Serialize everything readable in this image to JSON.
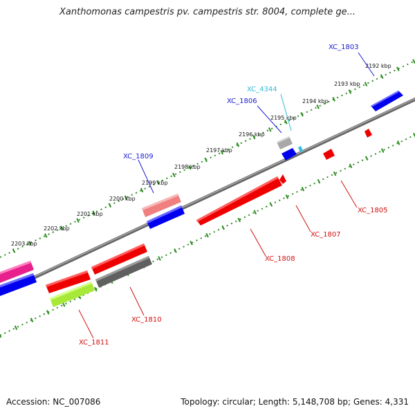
{
  "title": "Xanthomonas campestris pv. campestris str. 8004, complete ge...",
  "footer": {
    "accession": "Accession: NC_007086",
    "summary": "Topology: circular; Length: 5,148,708 bp; Genes: 4,331"
  },
  "colors": {
    "backbone": "#808080",
    "tick": "#2e8b22",
    "forward_label": "#1a1ad0",
    "reverse_label": "#d01010",
    "highlight_label": "#30b8d8"
  },
  "ticks": [
    {
      "label": "2192 kbp"
    },
    {
      "label": "2193 kbp"
    },
    {
      "label": "2194 kbp"
    },
    {
      "label": "2195 kbp"
    },
    {
      "label": "2196 kbp"
    },
    {
      "label": "2197 kbp"
    },
    {
      "label": "2198 kbp"
    },
    {
      "label": "2199 kbp"
    },
    {
      "label": "2200 kbp"
    },
    {
      "label": "2201 kbp"
    },
    {
      "label": "2202 kbp"
    },
    {
      "label": "2203 kbp"
    }
  ],
  "genes": [
    {
      "label": "XC_1803",
      "strand": "+",
      "color": "#0000ee"
    },
    {
      "label": "XC_4344",
      "strand": "+",
      "color": "#30c0e0"
    },
    {
      "label": "XC_1806",
      "strand": "+",
      "color": "#0000ee"
    },
    {
      "label": "XC_1809",
      "strand": "+",
      "color": "#0000ee"
    },
    {
      "label": "XC_1805",
      "strand": "-",
      "color": "#ee0000"
    },
    {
      "label": "XC_1807",
      "strand": "-",
      "color": "#ee0000"
    },
    {
      "label": "XC_1808",
      "strand": "-",
      "color": "#ee0000"
    },
    {
      "label": "XC_1810",
      "strand": "-",
      "color": "#ee0000"
    },
    {
      "label": "XC_1811",
      "strand": "-",
      "color": "#ee0000"
    }
  ]
}
